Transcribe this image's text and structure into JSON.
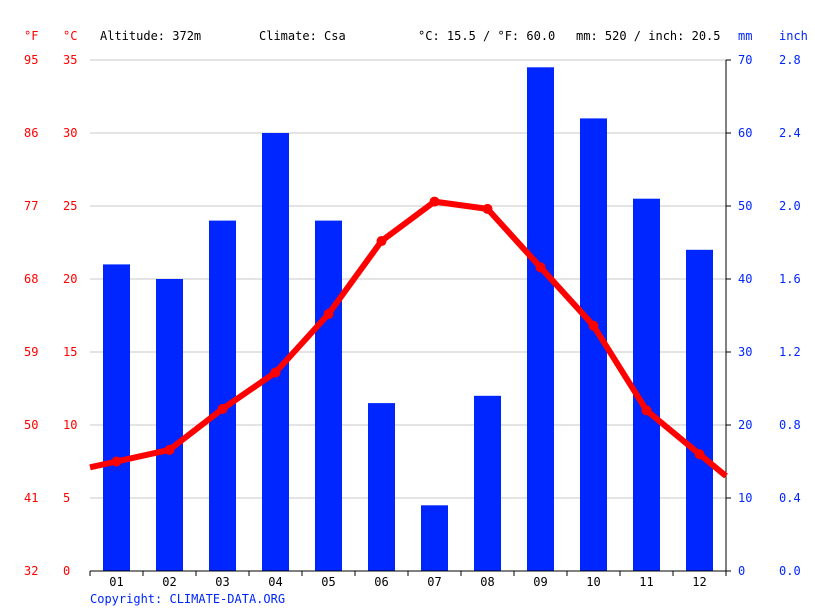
{
  "header": {
    "unit_f": "°F",
    "unit_c": "°C",
    "altitude": "Altitude: 372m",
    "climate": "Climate: Csa",
    "temp_avg": "°C: 15.5 / °F: 60.0",
    "precip_total": "mm: 520 / inch: 20.5",
    "unit_mm": "mm",
    "unit_inch": "inch"
  },
  "copyright": "Copyright: CLIMATE-DATA.ORG",
  "colors": {
    "temperature": "#ff0000",
    "precipitation": "#0026ff",
    "grid": "#c8c8c8"
  },
  "chart_data": {
    "type": "bar",
    "categories": [
      "01",
      "02",
      "03",
      "04",
      "05",
      "06",
      "07",
      "08",
      "09",
      "10",
      "11",
      "12"
    ],
    "series": [
      {
        "type": "bar",
        "axis": "right",
        "values": [
          42,
          40,
          48,
          60,
          48,
          23,
          9,
          24,
          69,
          62,
          51,
          44
        ]
      },
      {
        "type": "line",
        "axis": "left",
        "values": [
          7.5,
          8.3,
          11.1,
          13.6,
          17.6,
          22.6,
          25.3,
          24.8,
          20.8,
          16.8,
          11.0,
          8.0
        ]
      }
    ],
    "yleft_c": {
      "min": 0,
      "max": 35,
      "ticks": [
        "0",
        "5",
        "10",
        "15",
        "20",
        "25",
        "30",
        "35"
      ]
    },
    "yleft_f": {
      "ticks": [
        "32",
        "41",
        "50",
        "59",
        "68",
        "77",
        "86",
        "95"
      ]
    },
    "yright_mm": {
      "min": 0,
      "max": 70,
      "ticks": [
        "0",
        "10",
        "20",
        "30",
        "40",
        "50",
        "60",
        "70"
      ]
    },
    "yright_inch": {
      "ticks": [
        "0.0",
        "0.4",
        "0.8",
        "1.2",
        "1.6",
        "2.0",
        "2.4",
        "2.8"
      ]
    },
    "grid": true
  }
}
